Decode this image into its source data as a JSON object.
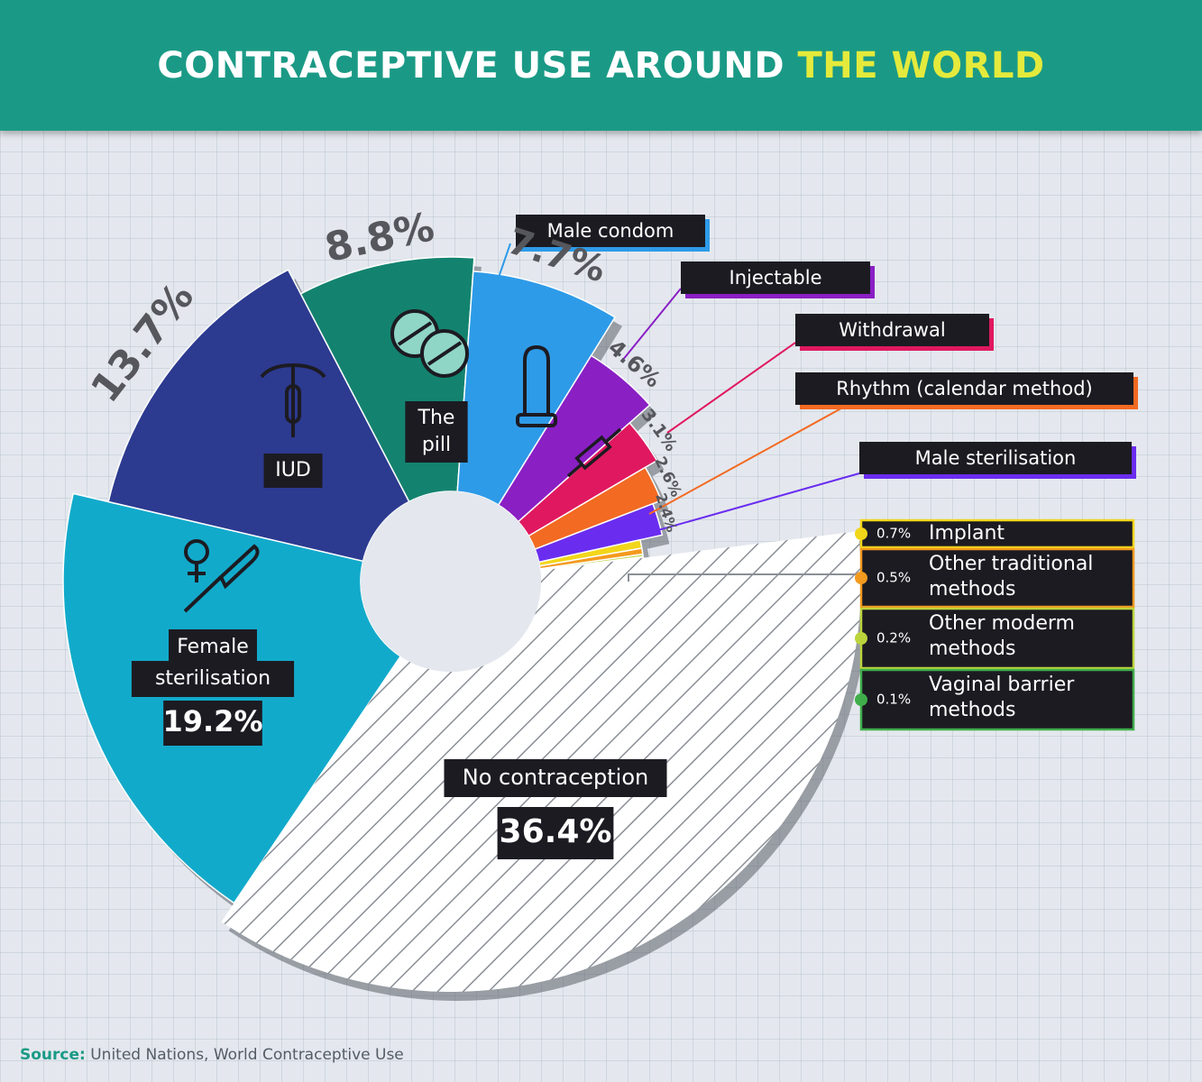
{
  "header": {
    "title_main": "CONTRACEPTIVE USE AROUND",
    "title_highlight": "THE WORLD"
  },
  "source": {
    "label": "Source:",
    "text": "United Nations, World Contraceptive Use"
  },
  "chart_data": {
    "type": "pie",
    "title": "CONTRACEPTIVE USE AROUND THE WORLD",
    "unit": "%",
    "slices": [
      {
        "label": "Female sterilisation",
        "display": "Female sterilisation",
        "value": 19.2,
        "value_label": "19.2%",
        "color": "#12aacb"
      },
      {
        "label": "IUD",
        "display": "IUD",
        "value": 13.7,
        "value_label": "13.7%",
        "color": "#2c3a90"
      },
      {
        "label": "The pill",
        "display": "The pill",
        "value": 8.8,
        "value_label": "8.8%",
        "color": "#13836f"
      },
      {
        "label": "Male condom",
        "display": "Male condom",
        "value": 7.7,
        "value_label": "7.7%",
        "color": "#2e9be8"
      },
      {
        "label": "Injectable",
        "display": "Injectable",
        "value": 4.6,
        "value_label": "4.6%",
        "color": "#8a1fc4"
      },
      {
        "label": "Withdrawal",
        "display": "Withdrawal",
        "value": 3.1,
        "value_label": "3.1%",
        "color": "#e0185f"
      },
      {
        "label": "Rhythm (calendar method)",
        "display": "Rhythm (calendar method)",
        "value": 2.6,
        "value_label": "2.6%",
        "color": "#f36a22"
      },
      {
        "label": "Male sterilisation",
        "display": "Male sterilisation",
        "value": 2.4,
        "value_label": "2.4%",
        "color": "#6a2df0"
      },
      {
        "label": "Implant",
        "display": "Implant",
        "value": 0.7,
        "value_label": "0.7%",
        "color": "#f2d61a"
      },
      {
        "label": "Other traditional methods",
        "display": "Other traditional methods",
        "value": 0.5,
        "value_label": "0.5%",
        "color": "#f39a1e"
      },
      {
        "label": "Other moderm methods",
        "display": "Other moderm methods",
        "value": 0.2,
        "value_label": "0.2%",
        "color": "#bcd43c"
      },
      {
        "label": "Vaginal barrier methods",
        "display": "Vaginal barrier methods",
        "value": 0.1,
        "value_label": "0.1%",
        "color": "#3fae4a"
      },
      {
        "label": "No contraception",
        "display": "No contraception",
        "value": 36.4,
        "value_label": "36.4%",
        "color": "#ffffff"
      }
    ]
  }
}
